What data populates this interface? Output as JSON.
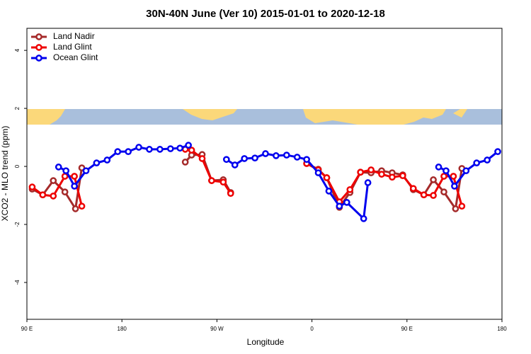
{
  "chart_data": {
    "type": "line",
    "title": "30N-40N June (Ver 10)   2015-01-01 to 2020-12-18",
    "x_label": "Longitude",
    "y_label": "XCO2 - MLO trend (ppm)",
    "xlim": [
      90,
      540
    ],
    "ylim": [
      -5.27,
      4.76
    ],
    "xticks": [
      {
        "value": 90,
        "label": "90 E"
      },
      180,
      {
        "value": 270,
        "label": "90 W"
      },
      {
        "value": 360,
        "label": "0"
      },
      {
        "value": 450,
        "label": "90 E"
      },
      {
        "value": 540,
        "label": "180"
      }
    ],
    "yticks": [
      -4,
      -2,
      0,
      2,
      4
    ],
    "legend": "top-left",
    "series": [
      {
        "name": "Land Nadir",
        "color": "#a52a2a",
        "x": [
          95,
          105,
          115,
          126,
          136,
          142,
          null,
          240,
          246,
          256,
          265,
          276,
          283,
          null,
          355,
          366,
          374,
          386,
          396,
          406,
          416,
          426,
          436,
          446,
          456,
          466,
          475,
          485,
          496,
          502
        ],
        "values": [
          -0.78,
          -0.98,
          -0.49,
          -0.88,
          -1.46,
          -0.05,
          null,
          0.15,
          0.39,
          0.41,
          -0.49,
          -0.46,
          -0.9,
          null,
          0.1,
          -0.1,
          -0.39,
          -1.41,
          -0.9,
          -0.2,
          -0.22,
          -0.15,
          -0.22,
          -0.29,
          -0.8,
          -0.98,
          -0.46,
          -0.88,
          -1.46,
          -0.07
        ]
      },
      {
        "name": "Land Glint",
        "color": "#ee0000",
        "x": [
          95,
          105,
          115,
          126,
          135,
          142,
          null,
          240,
          246,
          256,
          265,
          276,
          283,
          null,
          355,
          366,
          374,
          386,
          396,
          406,
          416,
          426,
          436,
          446,
          456,
          466,
          475,
          485,
          494,
          502
        ],
        "values": [
          -0.71,
          -0.98,
          -1.02,
          -0.34,
          -0.34,
          -1.37,
          null,
          0.59,
          0.56,
          0.27,
          -0.49,
          -0.54,
          -0.93,
          null,
          0.1,
          -0.12,
          -0.39,
          -1.22,
          -0.8,
          -0.2,
          -0.12,
          -0.27,
          -0.37,
          -0.32,
          -0.76,
          -0.98,
          -1.0,
          -0.34,
          -0.34,
          -1.37
        ]
      },
      {
        "name": "Ocean Glint",
        "color": "#0000ee",
        "x": [
          120,
          127,
          135,
          146,
          156,
          166,
          176,
          186,
          196,
          206,
          216,
          226,
          235,
          243,
          null,
          279,
          287,
          296,
          306,
          316,
          326,
          336,
          346,
          355,
          366,
          376,
          386,
          393,
          409,
          413,
          null,
          480,
          487,
          495,
          506,
          516,
          526,
          536
        ],
        "values": [
          -0.02,
          -0.15,
          -0.68,
          -0.15,
          0.12,
          0.22,
          0.51,
          0.51,
          0.66,
          0.59,
          0.59,
          0.61,
          0.63,
          0.73,
          null,
          0.24,
          0.05,
          0.27,
          0.29,
          0.44,
          0.37,
          0.39,
          0.32,
          0.24,
          -0.22,
          -0.85,
          -1.37,
          -1.24,
          -1.8,
          -0.56,
          null,
          -0.02,
          -0.15,
          -0.68,
          -0.15,
          0.12,
          0.22,
          0.51
        ]
      }
    ]
  }
}
